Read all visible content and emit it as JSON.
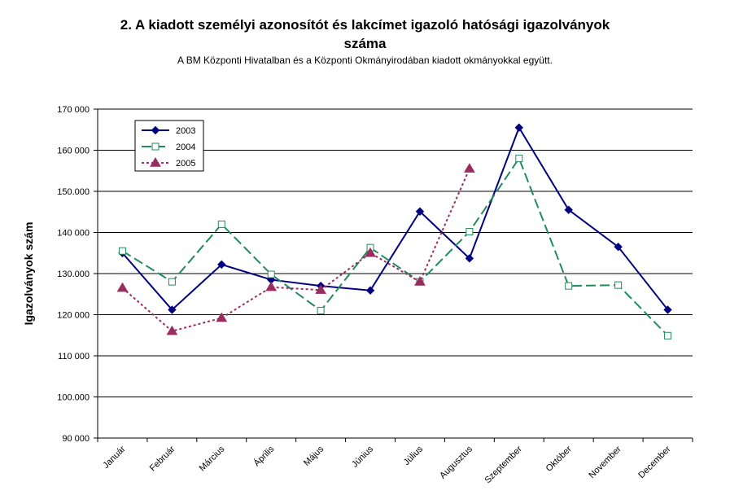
{
  "chart_data": {
    "type": "line",
    "title_line1": "2. A kiadott személyi azonosítót és lakcímet igazoló hatósági igazolványok",
    "title_line2": "száma",
    "subtitle": "A BM Központi Hivatalban és a Központi Okmányirodában kiadott okmányokkal együtt.",
    "ylabel": "Igazolványok szám",
    "xlabel": "",
    "ylim": [
      90000,
      170000
    ],
    "yticks": [
      90000,
      100000,
      110000,
      120000,
      130000,
      140000,
      150000,
      160000,
      170000
    ],
    "ytick_labels": [
      "90 000",
      "100.000",
      "110 000",
      "120 000",
      "130.000",
      "140 000",
      "150.000",
      "160 000",
      "170 000"
    ],
    "categories": [
      "Január",
      "Február",
      "Március",
      "Április",
      "Május",
      "Június",
      "Július",
      "Augusztus",
      "Szeptember",
      "Október",
      "November",
      "December"
    ],
    "grid": true,
    "legend_position": "top-left",
    "series": [
      {
        "name": "2003",
        "color": "#000080",
        "dash": "solid",
        "marker": "diamond",
        "values": [
          135000,
          121200,
          132200,
          128500,
          127000,
          125900,
          145100,
          133700,
          165500,
          145500,
          136500,
          121200
        ]
      },
      {
        "name": "2004",
        "color": "#228B5C",
        "dash": "dashed",
        "marker": "square",
        "values": [
          135500,
          128000,
          142000,
          129800,
          121000,
          136300,
          128000,
          140200,
          158000,
          127000,
          127200,
          114900
        ]
      },
      {
        "name": "2005",
        "color": "#9B2D5E",
        "dash": "dotted",
        "marker": "triangle",
        "values": [
          126500,
          116000,
          119200,
          126700,
          126000,
          135000,
          128000,
          155500,
          null,
          null,
          null,
          null
        ]
      }
    ]
  }
}
